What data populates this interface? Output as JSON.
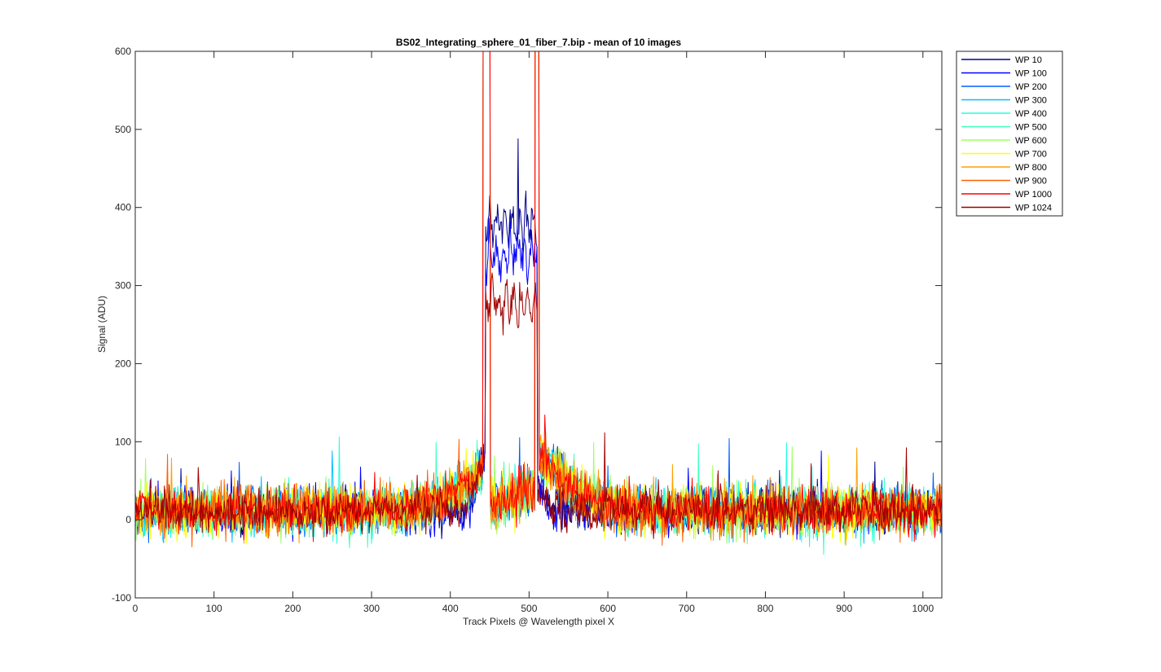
{
  "chart_data": {
    "type": "line",
    "title": "BS02_Integrating_sphere_01_fiber_7.bip - mean of 10 images",
    "xlabel": "Track Pixels @ Wavelength pixel X",
    "ylabel": "Signal (ADU)",
    "xlim": [
      0,
      1024
    ],
    "ylim": [
      -100,
      600
    ],
    "xticks": [
      "0",
      "100",
      "200",
      "300",
      "400",
      "500",
      "600",
      "700",
      "800",
      "900",
      "1000"
    ],
    "yticks": [
      "-100",
      "0",
      "100",
      "200",
      "300",
      "400",
      "500",
      "600"
    ],
    "grid": false,
    "legend_position": "outside-top-right",
    "series": [
      {
        "name": "WP 10",
        "color": "#00008f",
        "noise": 24,
        "spike": false,
        "plateau": 420
      },
      {
        "name": "WP 100",
        "color": "#0000ff",
        "noise": 26,
        "spike": false,
        "plateau": 380
      },
      {
        "name": "WP 200",
        "color": "#0060ff",
        "noise": 27,
        "spike": true,
        "plateau": 0
      },
      {
        "name": "WP 300",
        "color": "#00bfff",
        "noise": 28,
        "spike": true,
        "plateau": 0
      },
      {
        "name": "WP 400",
        "color": "#20ffdf",
        "noise": 28,
        "spike": true,
        "plateau": 0
      },
      {
        "name": "WP 500",
        "color": "#40ffbf",
        "noise": 28,
        "spike": true,
        "plateau": 0
      },
      {
        "name": "WP 600",
        "color": "#9fff60",
        "noise": 29,
        "spike": true,
        "plateau": 0
      },
      {
        "name": "WP 700",
        "color": "#ffff00",
        "noise": 30,
        "spike": true,
        "plateau": 0
      },
      {
        "name": "WP 800",
        "color": "#ff9f00",
        "noise": 30,
        "spike": true,
        "plateau": 0
      },
      {
        "name": "WP 900",
        "color": "#ff6000",
        "noise": 29,
        "spike": true,
        "plateau": 0
      },
      {
        "name": "WP 1000",
        "color": "#ff0000",
        "noise": 27,
        "spike": true,
        "plateau": 0
      },
      {
        "name": "WP 1024",
        "color": "#9f0000",
        "noise": 24,
        "spike": false,
        "plateau": 320
      }
    ]
  }
}
